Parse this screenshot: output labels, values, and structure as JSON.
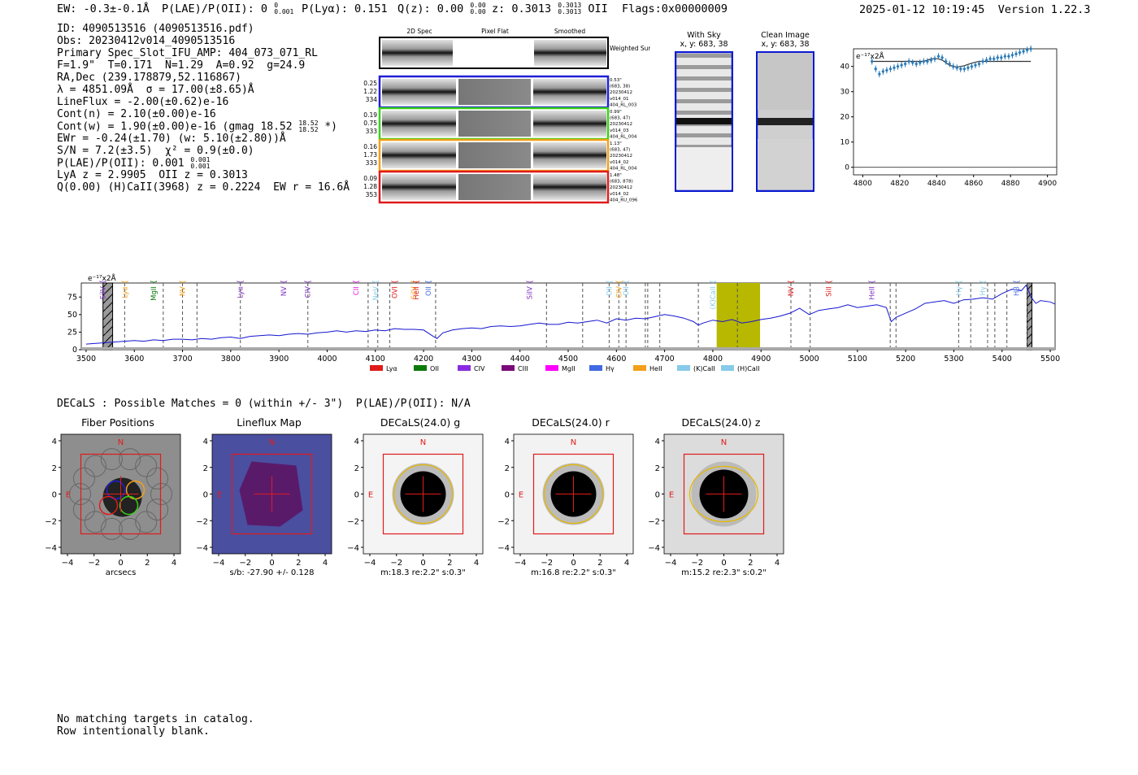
{
  "header": {
    "ew": "EW: -0.3±-0.1Å",
    "plae_label": "P(LAE)/P(OII): 0",
    "plae_sup": "0",
    "plae_sub": "0.001",
    "plya": "P(Lyα): 0.151",
    "qz": "Q(z): 0.00",
    "qz_sup": "0.00",
    "qz_sub": "0.00",
    "z_label": "z: 0.3013",
    "z_sup": "0.3013",
    "z_sub": "0.3013",
    "z_line": "OII",
    "flags": "Flags:0x00000009",
    "timestamp": "2025-01-12 10:19:45",
    "version": "Version 1.22.3"
  },
  "info": {
    "id": "ID: 4090513516 (4090513516.pdf)",
    "obs": "Obs: 20230412v014_4090513516",
    "slot": "Primary Spec_Slot_IFU_AMP: 404_073_071_RL",
    "params": "F=1.9\"  T=0.171  N=1.29  A=0.92  g=24.9",
    "radec": "RA,Dec (239.178879,52.116867)",
    "lambda": "λ = 4851.09Å  σ = 17.00(±8.65)Å",
    "lineflux": "LineFlux = -2.00(±0.62)e-16",
    "contn": "Cont(n) = 2.10(±0.00)e-16",
    "contw_a": "Cont(w) = 1.90(±0.00)e-16 (gmag 18.52",
    "contw_sup": "18.52",
    "contw_sub": "18.52",
    "contw_b": " *)",
    "ewr": "EWr = -0.24(±1.70) (w: 5.10(±2.80))Å",
    "sn": "S/N = 7.2(±3.5)  χ² = 0.9(±0.0)",
    "plae_a": "P(LAE)/P(OII): 0.001",
    "plae_sup": "0.001",
    "plae_sub": "0.001",
    "lya": "LyA z = 2.9905  OII z = 0.3013",
    "q": "Q(0.00) (H)CaII(3968) z = 0.2224  EW r = 16.6Å"
  },
  "cutouts": {
    "col_headers": [
      "2D Spec",
      "Pixel Flat",
      "Smoothed"
    ],
    "weighted_label": "Weighted\nSum",
    "rows": [
      {
        "left": [
          "0.25",
          "1.22",
          "334"
        ],
        "right": [
          "0.53\"",
          "(683, 38)",
          "20230412",
          "v014_01",
          "404_RL_003"
        ],
        "color": "#1f1fd6"
      },
      {
        "left": [
          "0.19",
          "0.75",
          "333"
        ],
        "right": [
          "0.99\"",
          "(683, 47)",
          "20230412",
          "v014_03",
          "404_RL_004"
        ],
        "color": "#39d11b"
      },
      {
        "left": [
          "0.16",
          "1.73",
          "333"
        ],
        "right": [
          "1.13\"",
          "(683, 47)",
          "20230412",
          "v014_02",
          "404_RL_004"
        ],
        "color": "#f2a01a"
      },
      {
        "left": [
          "0.09",
          "1.28",
          "353"
        ],
        "right": [
          "1.48\"",
          "(683, 878)",
          "20230412",
          "v014_02",
          "404_RU_096"
        ],
        "color": "#e01b1b"
      }
    ],
    "with_sky_title": "With Sky",
    "with_sky_xy": "x, y: 683, 38",
    "clean_title": "Clean Image",
    "clean_xy": "x, y: 683, 38"
  },
  "zoom_chart_data": {
    "type": "scatter",
    "unit_label": "e⁻¹⁷x2Å",
    "xlim": [
      4795,
      4905
    ],
    "ylim": [
      -3,
      47
    ],
    "xticks": [
      4800,
      4820,
      4840,
      4860,
      4880,
      4900
    ],
    "yticks": [
      0,
      10,
      20,
      30,
      40
    ],
    "x": [
      4805,
      4807,
      4809,
      4811,
      4813,
      4815,
      4817,
      4819,
      4821,
      4823,
      4825,
      4827,
      4829,
      4831,
      4833,
      4835,
      4837,
      4839,
      4841,
      4843,
      4845,
      4847,
      4849,
      4851,
      4853,
      4855,
      4857,
      4859,
      4861,
      4863,
      4865,
      4867,
      4869,
      4871,
      4873,
      4875,
      4877,
      4879,
      4881,
      4883,
      4885,
      4887,
      4889,
      4891
    ],
    "y": [
      42,
      39,
      37,
      38,
      38.5,
      39,
      39.5,
      40,
      40.5,
      41,
      42,
      41.5,
      41,
      41.5,
      42,
      42,
      42.5,
      43,
      44,
      43.5,
      42,
      41,
      40,
      39.5,
      39,
      39,
      39.5,
      40,
      40.5,
      41,
      42,
      42.5,
      43,
      43,
      43.5,
      43.5,
      44,
      44,
      44.5,
      45,
      45.5,
      46,
      46.5,
      47
    ],
    "fit": [
      42,
      42,
      42,
      42,
      42,
      42,
      42,
      42,
      42,
      42,
      42,
      42,
      42,
      42,
      42,
      42.5,
      43,
      43.2,
      43,
      42.5,
      41.5,
      40.5,
      40,
      39.8,
      40,
      40.3,
      40.8,
      41.3,
      41.7,
      42,
      42,
      42,
      42,
      42,
      42,
      42,
      42,
      42,
      42,
      42,
      42,
      42,
      42,
      42
    ]
  },
  "chart_data": {
    "type": "line",
    "unit_label": "e⁻¹⁷x2Å",
    "xlim": [
      3490,
      5510
    ],
    "ylim": [
      0,
      95
    ],
    "xticks": [
      3500,
      3600,
      3700,
      3800,
      3900,
      4000,
      4100,
      4200,
      4300,
      4400,
      4500,
      4600,
      4700,
      4800,
      4900,
      5000,
      5100,
      5200,
      5300,
      5400,
      5500
    ],
    "yticks": [
      0,
      25,
      50,
      75
    ],
    "series": [
      {
        "name": "spectrum",
        "x": [
          3500,
          3520,
          3540,
          3560,
          3580,
          3600,
          3620,
          3640,
          3660,
          3680,
          3700,
          3720,
          3740,
          3760,
          3780,
          3800,
          3820,
          3840,
          3860,
          3880,
          3900,
          3920,
          3940,
          3960,
          3980,
          4000,
          4020,
          4040,
          4060,
          4080,
          4100,
          4120,
          4140,
          4160,
          4180,
          4200,
          4220,
          4228,
          4240,
          4260,
          4280,
          4300,
          4320,
          4340,
          4360,
          4380,
          4400,
          4420,
          4440,
          4460,
          4480,
          4500,
          4520,
          4540,
          4560,
          4580,
          4600,
          4620,
          4640,
          4660,
          4680,
          4700,
          4720,
          4740,
          4760,
          4770,
          4780,
          4800,
          4820,
          4840,
          4860,
          4880,
          4900,
          4920,
          4940,
          4960,
          4980,
          5000,
          5020,
          5040,
          5060,
          5080,
          5100,
          5120,
          5140,
          5160,
          5170,
          5180,
          5200,
          5220,
          5240,
          5260,
          5280,
          5300,
          5320,
          5340,
          5360,
          5380,
          5400,
          5420,
          5440,
          5450,
          5460,
          5470,
          5480,
          5500,
          5510
        ],
        "y": [
          8,
          9,
          10,
          11,
          12,
          13,
          12,
          14,
          13,
          15,
          15,
          14,
          16,
          15,
          17,
          18,
          16,
          19,
          20,
          21,
          20,
          22,
          23,
          22,
          24,
          25,
          27,
          25,
          27,
          26,
          28,
          27,
          30,
          29,
          29,
          28,
          19,
          16,
          24,
          28,
          30,
          31,
          30,
          33,
          34,
          33,
          34,
          36,
          38,
          36,
          36,
          39,
          38,
          40,
          42,
          38,
          44,
          42,
          45,
          44,
          47,
          50,
          48,
          45,
          40,
          35,
          38,
          42,
          40,
          43,
          38,
          40,
          43,
          45,
          48,
          52,
          59,
          50,
          56,
          58,
          60,
          64,
          60,
          62,
          64,
          60,
          40,
          46,
          52,
          58,
          66,
          68,
          70,
          66,
          71,
          72,
          74,
          72,
          80,
          86,
          84,
          92,
          75,
          66,
          70,
          68,
          65
        ]
      }
    ],
    "shaded_bands": [
      {
        "from": 3535,
        "to": 3555,
        "kind": "hatched"
      },
      {
        "from": 4808,
        "to": 4898,
        "kind": "highlight"
      },
      {
        "from": 5452,
        "to": 5462,
        "kind": "hatched"
      }
    ],
    "dashed_lines": [
      3580,
      3660,
      3700,
      3730,
      3820,
      3960,
      4085,
      4105,
      4130,
      4225,
      4455,
      4530,
      4585,
      4605,
      4620,
      4660,
      4665,
      4690,
      4770,
      4851,
      4962,
      5002,
      5168,
      5180,
      5310,
      5335,
      5370,
      5385,
      5410,
      5452
    ],
    "line_labels": [
      {
        "name": "SiIV",
        "x": 3535,
        "color": "#7b2fbe"
      },
      {
        "name": "Lyα",
        "x": 3580,
        "color": "#f2a01a"
      },
      {
        "name": "MgII",
        "x": 3640,
        "color": "#0a7a0a"
      },
      {
        "name": "NV",
        "x": 3700,
        "color": "#f2a01a"
      },
      {
        "name": "Lyα",
        "x": 3820,
        "color": "#7b2fbe"
      },
      {
        "name": "NV",
        "x": 3910,
        "color": "#7b2fbe"
      },
      {
        "name": "CIV",
        "x": 3960,
        "color": "#7b2fbe"
      },
      {
        "name": "CII",
        "x": 4060,
        "color": "#e01be0"
      },
      {
        "name": "NeV",
        "x": 4100,
        "color": "#87cbe8"
      },
      {
        "name": "OVI",
        "x": 4140,
        "color": "#e01b1b"
      },
      {
        "name": "SiIV",
        "x": 4180,
        "color": "#f2a01a"
      },
      {
        "name": "HeII",
        "x": 4185,
        "color": "#e01b1b"
      },
      {
        "name": "OII",
        "x": 4210,
        "color": "#4169e1"
      },
      {
        "name": "SiIV",
        "x": 4420,
        "color": "#7b2fbe"
      },
      {
        "name": "OII",
        "x": 4585,
        "color": "#87cbe8"
      },
      {
        "name": "CIV",
        "x": 4605,
        "color": "#f2a01a"
      },
      {
        "name": "OII",
        "x": 4620,
        "color": "#87cbe8"
      },
      {
        "name": "(K)CaII",
        "x": 4800,
        "color": "#87cbe8"
      },
      {
        "name": "NV",
        "x": 4962,
        "color": "#e01b1b"
      },
      {
        "name": "SiII",
        "x": 5040,
        "color": "#e01b1b"
      },
      {
        "name": "HeII",
        "x": 5130,
        "color": "#7b2fbe"
      },
      {
        "name": "Hγ",
        "x": 5310,
        "color": "#87cbe8"
      },
      {
        "name": "Hγ",
        "x": 5360,
        "color": "#87cbe8"
      },
      {
        "name": "Hβ",
        "x": 5430,
        "color": "#4169e1"
      }
    ],
    "legend": [
      {
        "name": "Lyα",
        "color": "#e01b1b"
      },
      {
        "name": "OII",
        "color": "#0a7a0a"
      },
      {
        "name": "CIV",
        "color": "#8a2be2"
      },
      {
        "name": "CIII",
        "color": "#7a0a7a"
      },
      {
        "name": "MgII",
        "color": "#ff00ff"
      },
      {
        "name": "Hγ",
        "color": "#4169e1"
      },
      {
        "name": "HeII",
        "color": "#f2a01a"
      },
      {
        "name": "(K)CaII",
        "color": "#87cbe8"
      },
      {
        "name": "(H)CaII",
        "color": "#87cbe8"
      }
    ]
  },
  "decals": {
    "summary": "DECaLS : Possible Matches = 0 (within +/- 3\")  P(LAE)/P(OII): N/A",
    "ticks": [
      "−4",
      "−2",
      "0",
      "2",
      "4"
    ],
    "compass_n": "N",
    "compass_e": "E",
    "panels": [
      {
        "title": "Fiber Positions",
        "caption": "arcsecs"
      },
      {
        "title": "Lineflux Map",
        "caption": "s/b: -27.90 +/- 0.128"
      },
      {
        "title": "DECaLS(24.0) g",
        "caption": "m:18.3  re:2.2\"  s:0.3\""
      },
      {
        "title": "DECaLS(24.0) r",
        "caption": "m:16.8  re:2.2\"  s:0.3\""
      },
      {
        "title": "DECaLS(24.0) z",
        "caption": "m:15.2  re:2.3\"  s:0.2\""
      }
    ]
  },
  "footer": {
    "line1": "No matching targets in catalog.",
    "line2": "Row intentionally blank."
  }
}
